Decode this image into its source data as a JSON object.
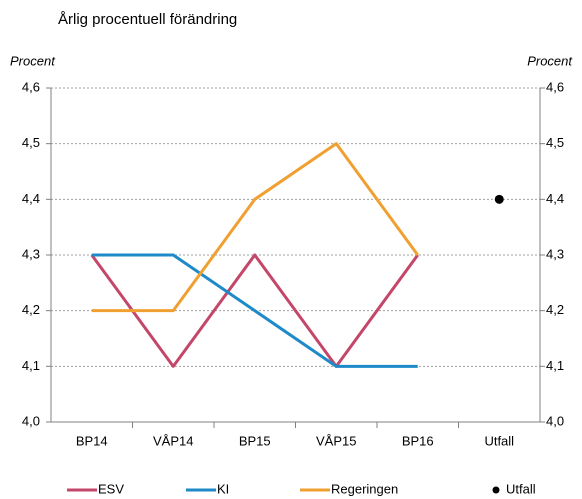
{
  "chart_data": {
    "type": "line",
    "title": "Årlig procentuell förändring",
    "ylabel": "Procent",
    "y2label": "Procent",
    "categories": [
      "BP14",
      "VÅP14",
      "BP15",
      "VÅP15",
      "BP16",
      "Utfall"
    ],
    "series": [
      {
        "name": "ESV",
        "color": "#c4476a",
        "mode": "line",
        "values": [
          4.3,
          4.1,
          4.3,
          4.1,
          4.3,
          null
        ]
      },
      {
        "name": "KI",
        "color": "#1f8ac8",
        "mode": "line",
        "values": [
          4.3,
          4.3,
          4.2,
          4.1,
          4.1,
          null
        ]
      },
      {
        "name": "Regeringen",
        "color": "#f0a030",
        "mode": "line",
        "values": [
          4.2,
          4.2,
          4.4,
          4.5,
          4.3,
          null
        ]
      },
      {
        "name": "Utfall",
        "color": "#000000",
        "mode": "marker",
        "values": [
          null,
          null,
          null,
          null,
          null,
          4.4
        ]
      }
    ],
    "ylim": [
      4.0,
      4.6
    ],
    "yticks": [
      {
        "value": 4.0,
        "label": "4,0"
      },
      {
        "value": 4.1,
        "label": "4,1"
      },
      {
        "value": 4.2,
        "label": "4,2"
      },
      {
        "value": 4.3,
        "label": "4,3"
      },
      {
        "value": 4.4,
        "label": "4,4"
      },
      {
        "value": 4.5,
        "label": "4,5"
      },
      {
        "value": 4.6,
        "label": "4,6"
      }
    ],
    "y2lim": [
      4.0,
      4.6
    ],
    "y2ticks": [
      {
        "value": 4.0,
        "label": "4,0"
      },
      {
        "value": 4.1,
        "label": "4,1"
      },
      {
        "value": 4.2,
        "label": "4,2"
      },
      {
        "value": 4.3,
        "label": "4,3"
      },
      {
        "value": 4.4,
        "label": "4,4"
      },
      {
        "value": 4.5,
        "label": "4,5"
      },
      {
        "value": 4.6,
        "label": "4,6"
      }
    ],
    "grid": true,
    "legend": "bottom"
  }
}
